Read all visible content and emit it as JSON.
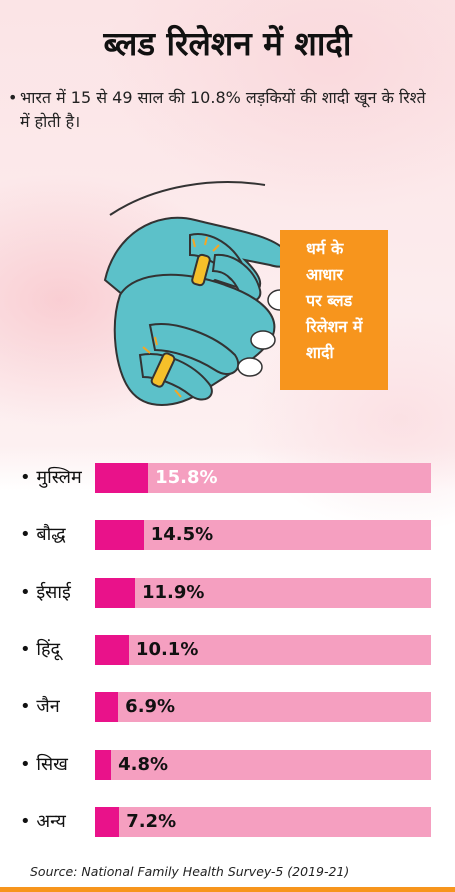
{
  "header": {
    "title": "ब्लड रिलेशन में शादी",
    "subtitle": "भारत में 15 से 49 साल की 10.8% लड़कियों की शादी खून के रिश्ते में होती है।"
  },
  "callout": {
    "lines": [
      "धर्म के",
      "आधार",
      "पर ब्लड",
      "रिलेशन में",
      "शादी"
    ]
  },
  "chart_data": {
    "type": "bar",
    "orientation": "horizontal",
    "categories": [
      "मुस्लिम",
      "बौद्ध",
      "ईसाई",
      "हिंदू",
      "जैन",
      "सिख",
      "अन्य"
    ],
    "values": [
      15.8,
      14.5,
      11.9,
      10.1,
      6.9,
      4.8,
      7.2
    ],
    "value_labels": [
      "15.8%",
      "14.5%",
      "11.9%",
      "10.1%",
      "6.9%",
      "4.8%",
      "7.2%"
    ],
    "xlim": [
      0,
      100
    ],
    "colors": {
      "fill": "#e9128a",
      "track": "#f59fc0"
    }
  },
  "footer": {
    "source": "Source: National Family Health Survey-5 (2019-21)"
  }
}
